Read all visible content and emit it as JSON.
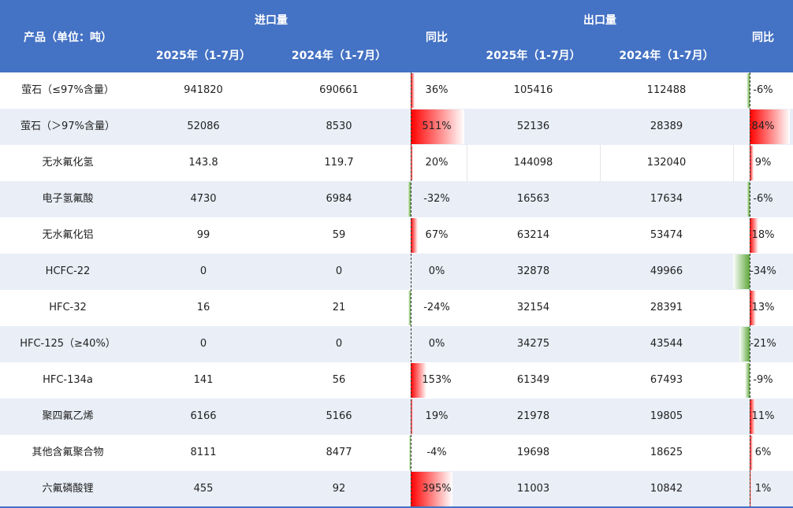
{
  "header": {
    "product": "产品（单位：吨）",
    "import_group": "进口量",
    "export_group": "出口量",
    "yoy": "同比",
    "y2025": "2025年（1-7月）",
    "y2024": "2024年（1-7月）"
  },
  "colors": {
    "header_bg": "#4472C4",
    "alt_row": "#E9EEF7",
    "positive": "#FF0000",
    "negative": "#5FA83C"
  },
  "chart_data": {
    "type": "table",
    "columns": [
      "产品（单位：吨）",
      "进口量 2025年（1-7月）",
      "进口量 2024年（1-7月）",
      "进口同比",
      "出口量 2025年（1-7月）",
      "出口量 2024年（1-7月）",
      "出口同比"
    ],
    "rows": [
      {
        "product": "萤石（≤97%含量）",
        "imp25": "941820",
        "imp24": "690661",
        "imp_yoy": 36,
        "exp25": "105416",
        "exp24": "112488",
        "exp_yoy": -6
      },
      {
        "product": "萤石（＞97%含量）",
        "imp25": "52086",
        "imp24": "8530",
        "imp_yoy": 511,
        "exp25": "52136",
        "exp24": "28389",
        "exp_yoy": 84
      },
      {
        "product": "无水氟化氢",
        "imp25": "143.8",
        "imp24": "119.7",
        "imp_yoy": 20,
        "exp25": "144098",
        "exp24": "132040",
        "exp_yoy": 9
      },
      {
        "product": "电子氢氟酸",
        "imp25": "4730",
        "imp24": "6984",
        "imp_yoy": -32,
        "exp25": "16563",
        "exp24": "17634",
        "exp_yoy": -6
      },
      {
        "product": "无水氟化铝",
        "imp25": "99",
        "imp24": "59",
        "imp_yoy": 67,
        "exp25": "63214",
        "exp24": "53474",
        "exp_yoy": 18
      },
      {
        "product": "HCFC-22",
        "imp25": "0",
        "imp24": "0",
        "imp_yoy": 0,
        "exp25": "32878",
        "exp24": "49966",
        "exp_yoy": -34
      },
      {
        "product": "HFC-32",
        "imp25": "16",
        "imp24": "21",
        "imp_yoy": -24,
        "exp25": "32154",
        "exp24": "28391",
        "exp_yoy": 13
      },
      {
        "product": "HFC-125（≥40%）",
        "imp25": "0",
        "imp24": "0",
        "imp_yoy": 0,
        "exp25": "34275",
        "exp24": "43544",
        "exp_yoy": -21
      },
      {
        "product": "HFC-134a",
        "imp25": "141",
        "imp24": "56",
        "imp_yoy": 153,
        "exp25": "61349",
        "exp24": "67493",
        "exp_yoy": -9
      },
      {
        "product": "聚四氟乙烯",
        "imp25": "6166",
        "imp24": "5166",
        "imp_yoy": 19,
        "exp25": "21978",
        "exp24": "19805",
        "exp_yoy": 11
      },
      {
        "product": "其他含氟聚合物",
        "imp25": "8111",
        "imp24": "8477",
        "imp_yoy": -4,
        "exp25": "19698",
        "exp24": "18625",
        "exp_yoy": 6
      },
      {
        "product": "六氟磷酸锂",
        "imp25": "455",
        "imp24": "92",
        "imp_yoy": 395,
        "exp25": "11003",
        "exp24": "10842",
        "exp_yoy": 1
      }
    ]
  }
}
